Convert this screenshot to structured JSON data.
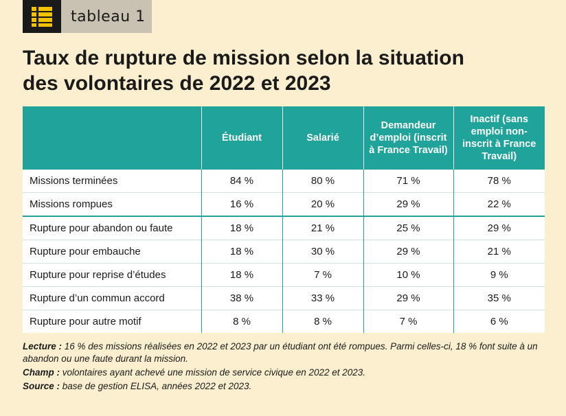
{
  "tag": {
    "icon": "list-icon",
    "label": "tableau 1"
  },
  "title": {
    "line1": "Taux de rupture de mission selon la situation",
    "line2": "des volontaires de 2022 et 2023"
  },
  "table": {
    "columns": [
      "Étudiant",
      "Salarié",
      "Demandeur d’emploi (inscrit à France Travail)",
      "Inactif (sans emploi non-inscrit à France Travail)"
    ],
    "rows": [
      {
        "label": "Missions terminées",
        "values": [
          "84 %",
          "80 %",
          "71 %",
          "78 %"
        ]
      },
      {
        "label": "Missions rompues",
        "values": [
          "16 %",
          "20 %",
          "29 %",
          "22 %"
        ]
      },
      {
        "label": "Rupture pour abandon ou faute",
        "values": [
          "18 %",
          "21 %",
          "25 %",
          "29 %"
        ]
      },
      {
        "label": "Rupture pour embauche",
        "values": [
          "18 %",
          "30 %",
          "29 %",
          "21 %"
        ]
      },
      {
        "label": "Rupture pour reprise d’études",
        "values": [
          "18 %",
          "7 %",
          "10 %",
          "9 %"
        ]
      },
      {
        "label": "Rupture d’un commun accord",
        "values": [
          "38 %",
          "33 %",
          "29 %",
          "35 %"
        ]
      },
      {
        "label": "Rupture pour autre motif",
        "values": [
          "8 %",
          "8 %",
          "7 %",
          "6 %"
        ]
      }
    ]
  },
  "notes": {
    "lecture_label": "Lecture :",
    "lecture_text": "16 % des missions réalisées en 2022 et 2023 par un étudiant ont été rompues. Parmi celles-ci, 18 % font suite à un abandon ou une faute durant la mission.",
    "champ_label": "Champ :",
    "champ_text": "volontaires ayant achevé une mission de service civique en 2022 et 2023.",
    "source_label": "Source :",
    "source_text": "base de gestion ELISA, années 2022 et 2023."
  },
  "colors": {
    "accent": "#1fa39b",
    "background": "#fbefcf",
    "icon_yellow": "#f2c200"
  }
}
